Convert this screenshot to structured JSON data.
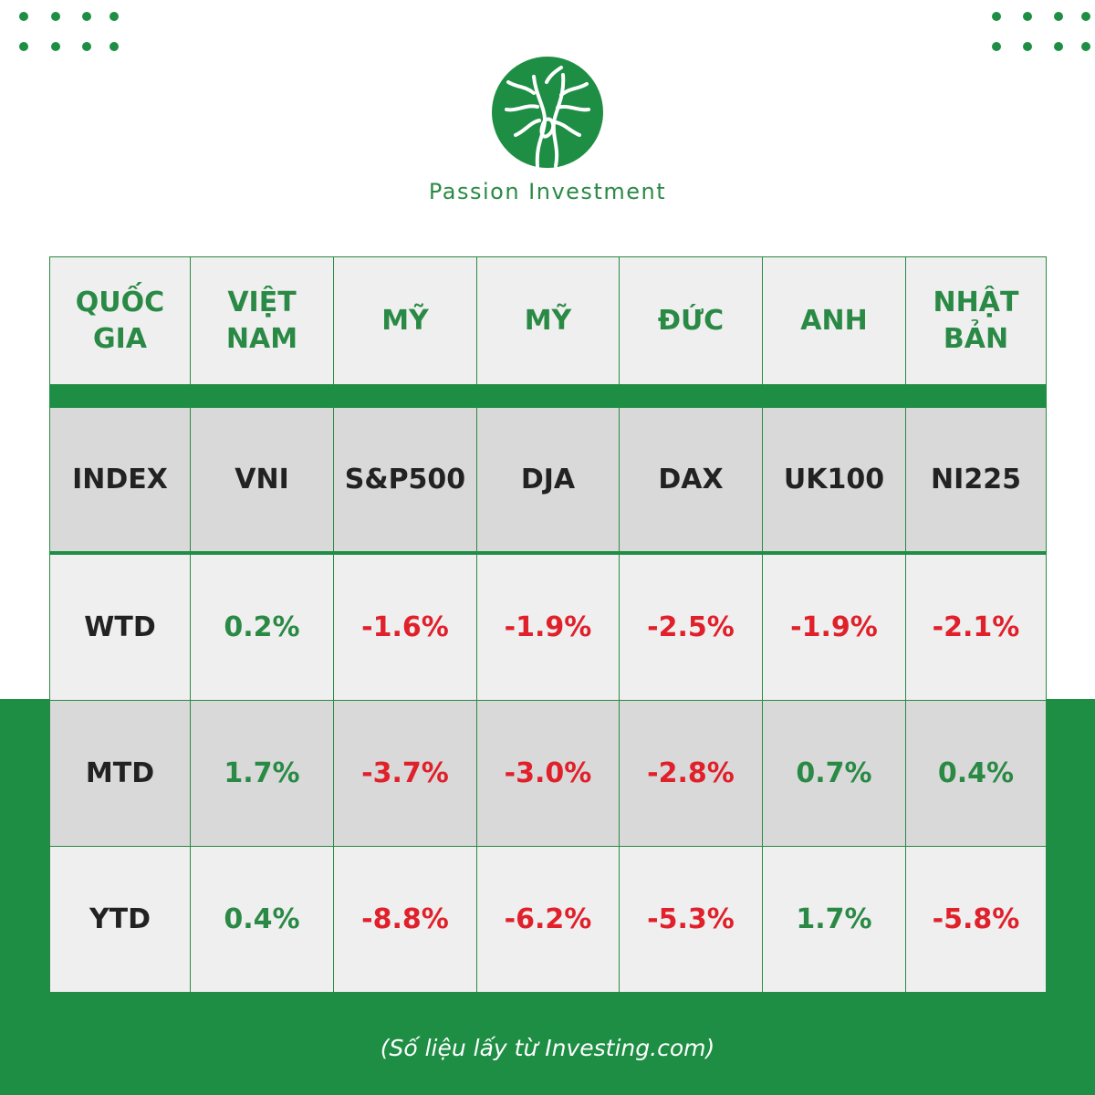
{
  "brand": {
    "name": "Passion Investment"
  },
  "colors": {
    "green": "#1e8e44",
    "text_green": "#2a8a45",
    "red": "#e0202a",
    "header_bg": "#efefef",
    "band_bg": "#d9d9d9"
  },
  "icons": {
    "logo": "tree-logo-icon",
    "decor": "dot-grid-icon"
  },
  "table": {
    "header": [
      "QUỐC GIA",
      "VIỆT NAM",
      "MỸ",
      "MỸ",
      "ĐỨC",
      "ANH",
      "NHẬT BẢN"
    ],
    "index_row": [
      "INDEX",
      "VNI",
      "S&P500",
      "DJA",
      "DAX",
      "UK100",
      "NI225"
    ],
    "rows": [
      {
        "label": "WTD",
        "values": [
          "0.2%",
          "-1.6%",
          "-1.9%",
          "-2.5%",
          "-1.9%",
          "-2.1%"
        ]
      },
      {
        "label": "MTD",
        "values": [
          "1.7%",
          "-3.7%",
          "-3.0%",
          "-2.8%",
          "0.7%",
          "0.4%"
        ]
      },
      {
        "label": "YTD",
        "values": [
          "0.4%",
          "-8.8%",
          "-6.2%",
          "-5.3%",
          "1.7%",
          "-5.8%"
        ]
      }
    ]
  },
  "source_note": "(Số liệu lấy từ Investing.com)"
}
